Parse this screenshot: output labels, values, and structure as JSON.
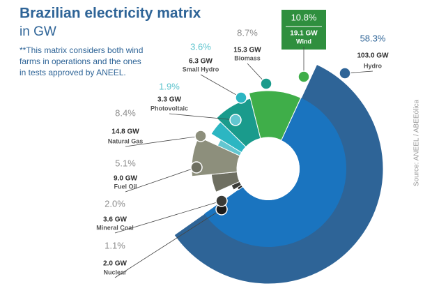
{
  "chart_data": {
    "type": "pie",
    "title": "Brazilian electricity matrix",
    "subtitle": "in GW",
    "note": "**This matrix considers both wind farms in operations and the ones in tests approved by ANEEL.",
    "source": "Source: ANEEL / ABEEólica",
    "categories": [
      "Hydro",
      "Nuclear",
      "Mineral Coal",
      "Fuel Oil",
      "Natural Gas",
      "Photovoltaic",
      "Small Hydro",
      "Biomass",
      "Wind"
    ],
    "values": [
      58.3,
      1.1,
      2.0,
      5.1,
      8.4,
      1.9,
      3.6,
      8.7,
      10.8
    ],
    "value_labels": [
      "58.3%",
      "1.1%",
      "2.0%",
      "5.1%",
      "8.4%",
      "1.9%",
      "3.6%",
      "8.7%",
      "10.8%"
    ],
    "capacities": [
      103.0,
      2.0,
      3.6,
      9.0,
      14.8,
      3.3,
      6.3,
      15.3,
      19.1
    ],
    "capacity_labels": [
      "103.0 GW",
      "2.0 GW",
      "3.6 GW",
      "9.0 GW",
      "14.8 GW",
      "3.3 GW",
      "6.3 GW",
      "15.3 GW",
      "19.1 GW"
    ],
    "colors": [
      "#2e6497",
      "#1c1c1c",
      "#3b3b37",
      "#6e6f61",
      "#8d8f7c",
      "#62c6d0",
      "#2cb6c2",
      "#1a9b8c",
      "#3fae49"
    ]
  }
}
